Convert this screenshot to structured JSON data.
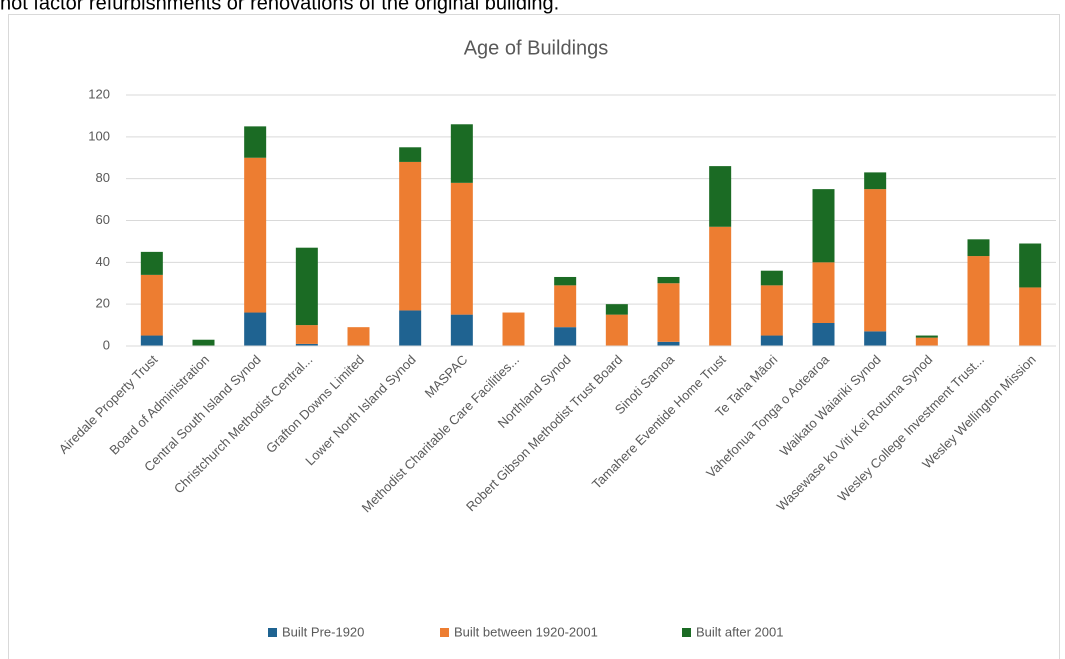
{
  "caption": "not factor refurbishments or renovations of the original building.",
  "chart_data": {
    "type": "stacked_bar",
    "title": "Age of Buildings",
    "categories": [
      "Airedale Property Trust",
      "Board of Administration",
      "Central South Island Synod",
      "Christchurch Methodist Central...",
      "Grafton Downs Limited",
      "Lower North Island Synod",
      "MASPAC",
      "Methodist Charitable Care Facilities...",
      "Northland Synod",
      "Robert Gibson Methodist Trust Board",
      "Sinoti Samoa",
      "Tamahere Eventide Home Trust",
      "Te Taha Māori",
      "Vahefonua Tonga o Aotearoa",
      "Waikato Waiariki Synod",
      "Wasewase ko Viti Kei Rotuma Synod",
      "Wesley College Investment Trust...",
      "Wesley Wellington Mission"
    ],
    "series": [
      {
        "name": "Built Pre-1920",
        "color": "#1f6391",
        "values": [
          5,
          0,
          16,
          1,
          0,
          17,
          15,
          0,
          9,
          0,
          2,
          0,
          5,
          11,
          7,
          0,
          0,
          0
        ]
      },
      {
        "name": "Built between 1920-2001",
        "color": "#ed7d31",
        "values": [
          29,
          0,
          74,
          9,
          9,
          71,
          63,
          16,
          20,
          15,
          28,
          57,
          24,
          29,
          68,
          4,
          43,
          28
        ]
      },
      {
        "name": "Built after 2001",
        "color": "#1b6b24",
        "values": [
          11,
          3,
          15,
          37,
          0,
          7,
          28,
          0,
          4,
          5,
          3,
          29,
          7,
          35,
          8,
          1,
          8,
          21
        ]
      }
    ],
    "ylim": [
      0,
      120
    ],
    "yticks": [
      0,
      20,
      40,
      60,
      80,
      100,
      120
    ],
    "grid": true,
    "legend": "bottom"
  }
}
